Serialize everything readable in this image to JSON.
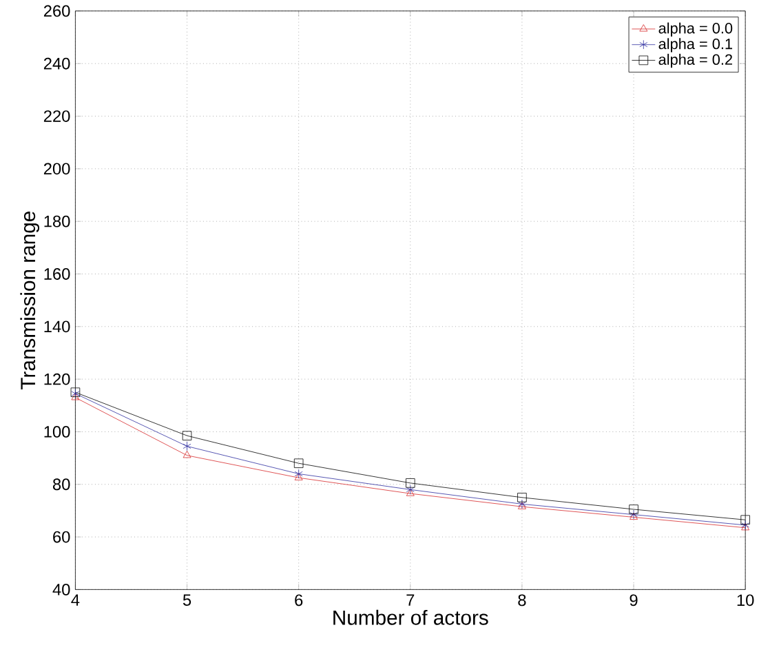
{
  "chart_data": {
    "type": "line",
    "xlabel": "Number of actors",
    "ylabel": "Transmission range",
    "x": [
      4,
      5,
      6,
      7,
      8,
      9,
      10
    ],
    "series": [
      {
        "name": "alpha = 0.0",
        "color": "#d62728",
        "marker": "triangle",
        "values": [
          113,
          91,
          82.5,
          76.5,
          71.5,
          67.5,
          63.5
        ]
      },
      {
        "name": "alpha = 0.1",
        "color": "#2b2b9e",
        "marker": "cross",
        "values": [
          114.5,
          94.5,
          84,
          78,
          72.5,
          68.5,
          64.5
        ]
      },
      {
        "name": "alpha = 0.2",
        "color": "#000000",
        "marker": "square",
        "values": [
          115,
          98.5,
          88,
          80.5,
          75,
          70.5,
          66.5
        ]
      }
    ],
    "xlim": [
      4,
      10
    ],
    "xticks": [
      4,
      5,
      6,
      7,
      8,
      9,
      10
    ],
    "ylim": [
      40,
      260
    ],
    "yticks": [
      40,
      60,
      80,
      100,
      120,
      140,
      160,
      180,
      200,
      220,
      240,
      260
    ],
    "grid": true,
    "legend": "top right",
    "line_style": "solid"
  }
}
